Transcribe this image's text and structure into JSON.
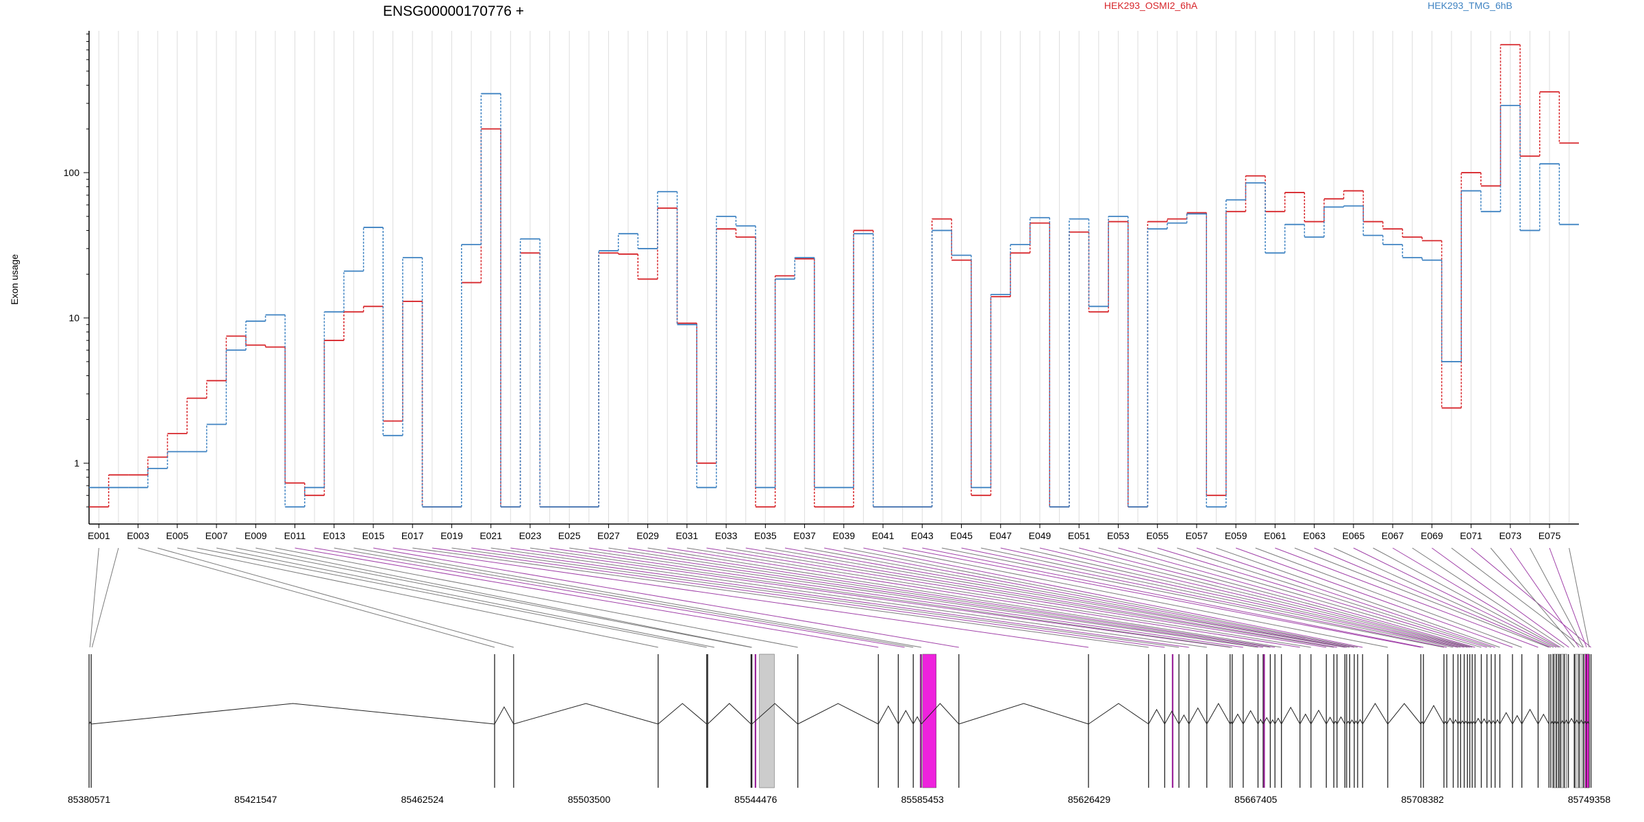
{
  "chart_data": {
    "type": "line",
    "title": "ENSG00000170776 +",
    "ylabel": "Exon usage",
    "y_scale": "log",
    "y_ticks": [
      "1",
      "10",
      "100"
    ],
    "grid": "vertical per exon",
    "legend_position": "top-right",
    "colors": {
      "HEK293_OSMI2_6hA": "#d7262b",
      "HEK293_TMG_6hB": "#3f83c2",
      "grid": "#dddddd",
      "gene_model": "#222222",
      "highlight_fill": "#ee22dd",
      "highlight_line": "#992299",
      "shaded_fill": "#cccccc"
    },
    "exon_labels": [
      "E001",
      "E003",
      "E005",
      "E007",
      "E009",
      "E011",
      "E013",
      "E015",
      "E017",
      "E019",
      "E021",
      "E023",
      "E025",
      "E027",
      "E029",
      "E031",
      "E033",
      "E035",
      "E037",
      "E039",
      "E041",
      "E043",
      "E045",
      "E047",
      "E049",
      "E051",
      "E053",
      "E055",
      "E057",
      "E059",
      "E061",
      "E063",
      "E065",
      "E067",
      "E069",
      "E071",
      "E073",
      "E075"
    ],
    "series": [
      {
        "name": "HEK293_OSMI2_6hA",
        "values": [
          0.5,
          0.83,
          0.83,
          1.1,
          1.6,
          2.8,
          3.7,
          7.5,
          6.5,
          6.3,
          0.73,
          0.6,
          7.0,
          11,
          12,
          1.95,
          13,
          0.5,
          0.5,
          17.5,
          200,
          0.5,
          28,
          0.5,
          0.5,
          0.5,
          28,
          27.5,
          18.5,
          57,
          9.2,
          1.0,
          41,
          36,
          0.5,
          19.5,
          25.5,
          0.5,
          0.5,
          40,
          0.5,
          0.5,
          0.5,
          48,
          25,
          0.6,
          14,
          28,
          45,
          0.5,
          39,
          11,
          46,
          0.5,
          46,
          48,
          53,
          0.6,
          54,
          95,
          54,
          73,
          46,
          66,
          75,
          46,
          41,
          36,
          34,
          2.4,
          100,
          81,
          760,
          130,
          360,
          160
        ]
      },
      {
        "name": "HEK293_TMG_6hB",
        "values": [
          0.68,
          0.68,
          0.68,
          0.92,
          1.2,
          1.2,
          1.85,
          6.0,
          9.5,
          10.5,
          0.5,
          0.68,
          11,
          21,
          42,
          1.55,
          26,
          0.5,
          0.5,
          32,
          350,
          0.5,
          35,
          0.5,
          0.5,
          0.5,
          29,
          38,
          30,
          74,
          9.0,
          0.68,
          50,
          43,
          0.68,
          18.5,
          26,
          0.68,
          0.68,
          38,
          0.5,
          0.5,
          0.5,
          40,
          27,
          0.68,
          14.5,
          32,
          49,
          0.5,
          48,
          12,
          50,
          0.5,
          41,
          45,
          52,
          0.5,
          65,
          85,
          28,
          44,
          36,
          58,
          59,
          37,
          32,
          26,
          25,
          5.0,
          75,
          54,
          290,
          40,
          115,
          44
        ]
      }
    ],
    "genomic_positions": [
      "85380571",
      "85421547",
      "85462524",
      "85503500",
      "85544476",
      "85585453",
      "85626429",
      "85667405",
      "85708382",
      "85749358"
    ],
    "exon_genomic_coords": [
      [
        85380571,
        85380990
      ],
      [
        85381100,
        85381500
      ],
      [
        85480271,
        85480271
      ],
      [
        85484950,
        85484950
      ],
      [
        85520470,
        85520470
      ],
      [
        85532415,
        85532415
      ],
      [
        85532650,
        85535920
      ],
      [
        85543310,
        85543310
      ],
      [
        85543520,
        85543520
      ],
      [
        85554810,
        85554810
      ],
      [
        85574605,
        85574605
      ],
      [
        85579510,
        85582610
      ],
      [
        85583190,
        85583190
      ],
      [
        85585170,
        85585170
      ],
      [
        85594400,
        85594400
      ],
      [
        85626265,
        85626265
      ],
      [
        85641040,
        85641040
      ],
      [
        85645000,
        85645000
      ],
      [
        85648500,
        85648500
      ],
      [
        85650960,
        85650960
      ],
      [
        85655350,
        85655350
      ],
      [
        85661080,
        85661080
      ],
      [
        85661600,
        85661600
      ],
      [
        85664300,
        85664300
      ],
      [
        85667940,
        85667940
      ],
      [
        85669200,
        85669200
      ],
      [
        85670960,
        85670960
      ],
      [
        85672110,
        85672110
      ],
      [
        85673700,
        85673700
      ],
      [
        85678260,
        85678260
      ],
      [
        85680960,
        85680960
      ],
      [
        85684730,
        85684730
      ],
      [
        85686580,
        85686580
      ],
      [
        85687360,
        85687360
      ],
      [
        85689300,
        85689300
      ],
      [
        85689720,
        85689720
      ],
      [
        85690480,
        85690480
      ],
      [
        85691600,
        85691600
      ],
      [
        85692430,
        85692430
      ],
      [
        85693650,
        85693650
      ],
      [
        85699830,
        85699830
      ],
      [
        85707970,
        85707970
      ],
      [
        85708600,
        85708600
      ],
      [
        85713650,
        85713650
      ],
      [
        85714350,
        85714350
      ],
      [
        85715930,
        85715930
      ],
      [
        85717100,
        85717100
      ],
      [
        85717740,
        85717740
      ],
      [
        85718630,
        85718630
      ],
      [
        85719420,
        85719420
      ],
      [
        85720000,
        85720000
      ],
      [
        85720600,
        85720600
      ],
      [
        85721300,
        85721300
      ],
      [
        85722830,
        85722830
      ],
      [
        85724220,
        85724220
      ],
      [
        85725280,
        85725280
      ],
      [
        85726220,
        85726220
      ],
      [
        85727390,
        85727390
      ],
      [
        85730500,
        85730500
      ],
      [
        85732800,
        85732800
      ],
      [
        85736800,
        85736800
      ],
      [
        85739460,
        85739460
      ],
      [
        85739900,
        85739900
      ],
      [
        85740610,
        85740610
      ],
      [
        85741300,
        85741300
      ],
      [
        85741880,
        85741880
      ],
      [
        85742300,
        85742300
      ],
      [
        85743200,
        85743200
      ],
      [
        85744250,
        85744500
      ],
      [
        85745760,
        85749740
      ],
      [
        85749800,
        85749800
      ],
      [
        85745780,
        85745780
      ],
      [
        85746860,
        85746860
      ],
      [
        85747930,
        85747930
      ],
      [
        85748700,
        85748700
      ],
      [
        85749358,
        85749358
      ]
    ],
    "highlighted_exons": [
      10,
      11,
      14,
      15,
      17,
      19,
      21,
      23,
      25,
      27,
      29,
      31,
      33,
      35,
      37,
      39,
      41,
      42,
      44,
      46,
      48,
      50,
      52,
      54,
      56,
      58,
      60,
      62,
      64,
      66,
      68,
      70,
      72,
      74
    ],
    "highlight_boxes": [
      [
        85545370,
        85549040,
        "grey"
      ],
      [
        85585480,
        85588840,
        "magenta"
      ],
      [
        85740300,
        85743900,
        "grey"
      ],
      [
        85745580,
        85749380,
        "grey"
      ],
      [
        85748300,
        85749358,
        "magenta"
      ]
    ],
    "highlight_lines": [
      85544400,
      85585000,
      85646950,
      85669450
    ]
  }
}
